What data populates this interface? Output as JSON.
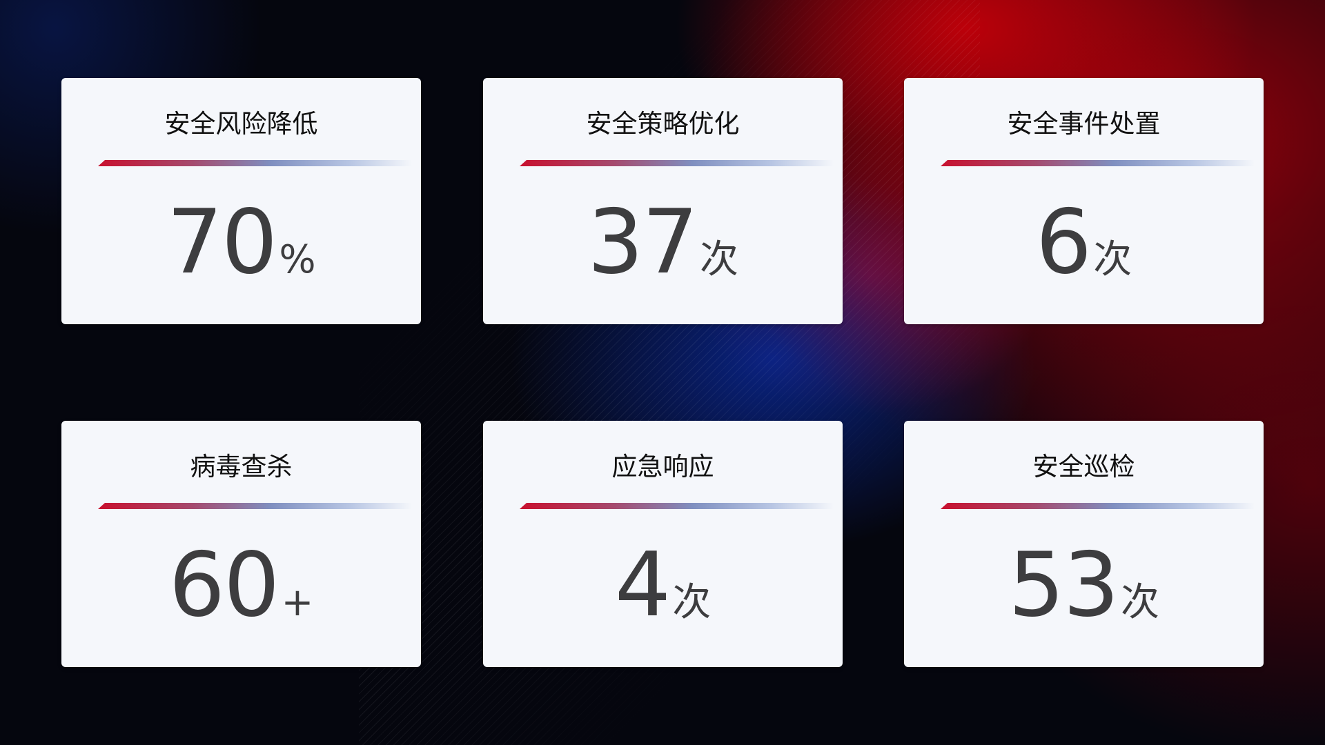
{
  "cards": [
    {
      "title": "安全风险降低",
      "value": "70",
      "unit": "%"
    },
    {
      "title": "安全策略优化",
      "value": "37",
      "unit": "次"
    },
    {
      "title": "安全事件处置",
      "value": "6",
      "unit": "次"
    },
    {
      "title": "病毒查杀",
      "value": "60",
      "unit": "+"
    },
    {
      "title": "应急响应",
      "value": "4",
      "unit": "次"
    },
    {
      "title": "安全巡检",
      "value": "53",
      "unit": "次"
    }
  ],
  "colors": {
    "accent_red": "#c8102e",
    "accent_blue": "#7f8fc0",
    "card_bg": "#f5f7fb",
    "value_text": "#3d3d3f"
  }
}
